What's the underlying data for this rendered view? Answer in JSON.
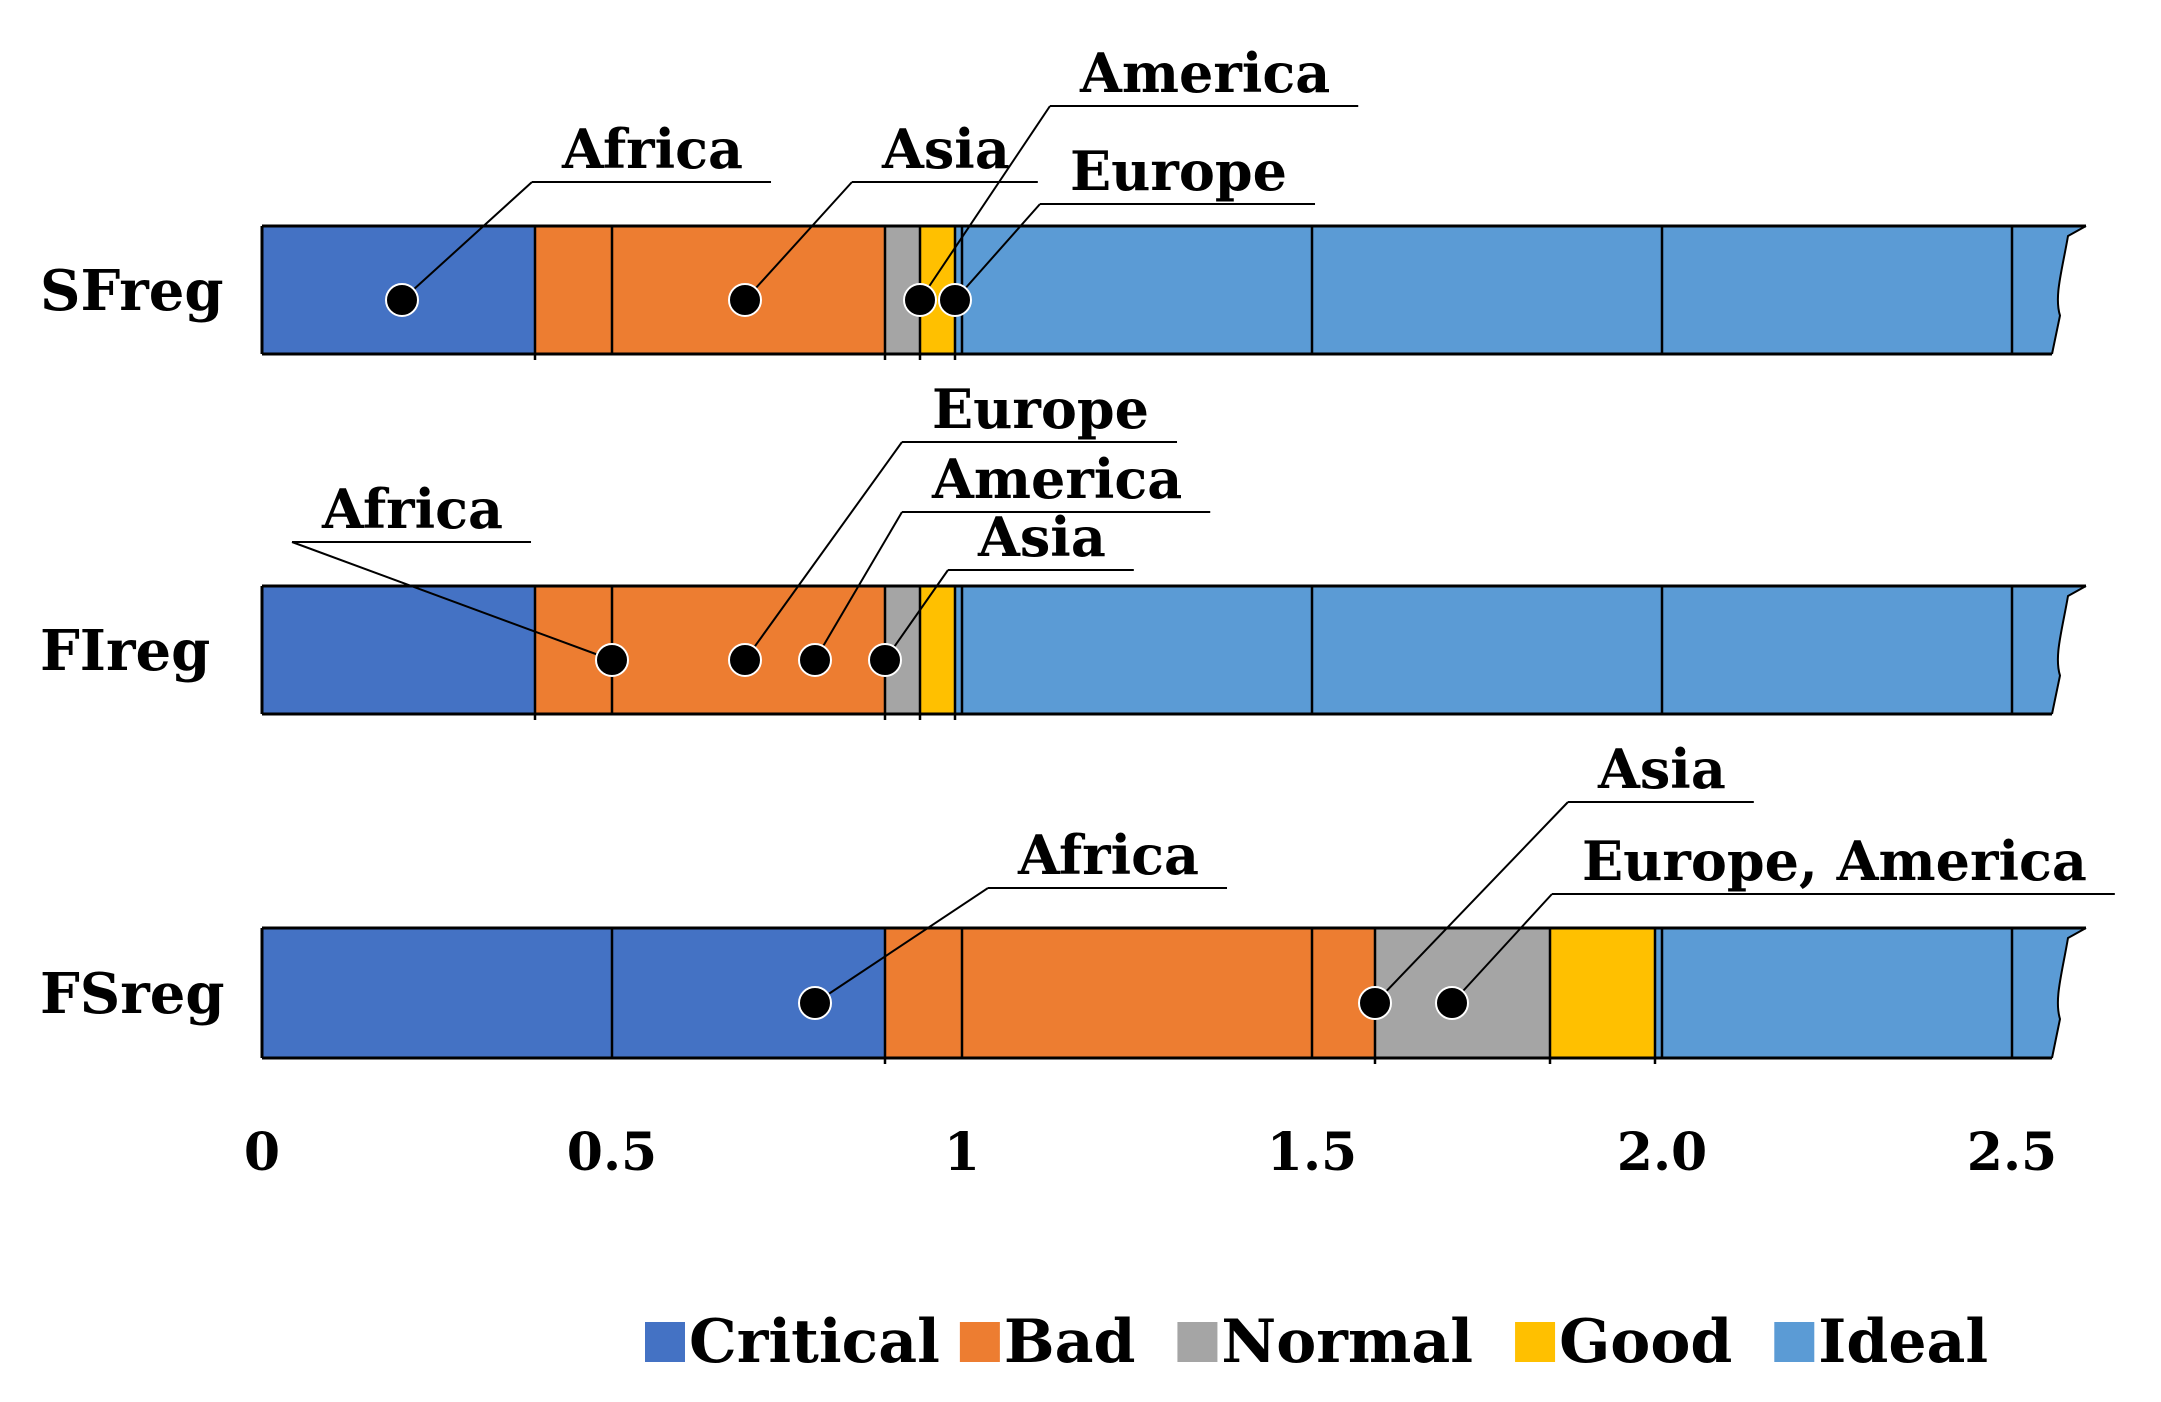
{
  "chart_data": {
    "type": "bar",
    "orientation": "horizontal",
    "xlim": [
      0,
      2.6
    ],
    "x_ticks": [
      "0",
      "0.5",
      "1",
      "1.5",
      "2.0",
      "2.5"
    ],
    "x_tick_values": [
      0,
      0.5,
      1,
      1.5,
      2.0,
      2.5
    ],
    "legend": [
      {
        "name": "Critical",
        "color": "#4472C4"
      },
      {
        "name": "Bad",
        "color": "#ED7D31"
      },
      {
        "name": "Normal",
        "color": "#A5A5A5"
      },
      {
        "name": "Good",
        "color": "#FFC000"
      },
      {
        "name": "Ideal",
        "color": "#5B9BD5"
      }
    ],
    "rows": [
      {
        "label": "SFreg",
        "segments": [
          {
            "class": "Critical",
            "from": 0,
            "to": 0.39
          },
          {
            "class": "Bad",
            "from": 0.39,
            "to": 0.89
          },
          {
            "class": "Normal",
            "from": 0.89,
            "to": 0.94
          },
          {
            "class": "Good",
            "from": 0.94,
            "to": 0.99
          },
          {
            "class": "Ideal",
            "from": 0.99,
            "to": 2.6
          }
        ],
        "points": [
          {
            "name": "Africa",
            "value": 0.2
          },
          {
            "name": "Asia",
            "value": 0.69
          },
          {
            "name": "America",
            "value": 0.94
          },
          {
            "name": "Europe",
            "value": 0.99
          }
        ]
      },
      {
        "label": "FIreg",
        "segments": [
          {
            "class": "Critical",
            "from": 0,
            "to": 0.39
          },
          {
            "class": "Bad",
            "from": 0.39,
            "to": 0.89
          },
          {
            "class": "Normal",
            "from": 0.89,
            "to": 0.94
          },
          {
            "class": "Good",
            "from": 0.94,
            "to": 0.99
          },
          {
            "class": "Ideal",
            "from": 0.99,
            "to": 2.6
          }
        ],
        "points": [
          {
            "name": "Africa",
            "value": 0.5
          },
          {
            "name": "Europe",
            "value": 0.69
          },
          {
            "name": "America",
            "value": 0.79
          },
          {
            "name": "Asia",
            "value": 0.89
          }
        ]
      },
      {
        "label": "FSreg",
        "segments": [
          {
            "class": "Critical",
            "from": 0,
            "to": 0.89
          },
          {
            "class": "Bad",
            "from": 0.89,
            "to": 1.59
          },
          {
            "class": "Normal",
            "from": 1.59,
            "to": 1.84
          },
          {
            "class": "Good",
            "from": 1.84,
            "to": 1.99
          },
          {
            "class": "Ideal",
            "from": 1.99,
            "to": 2.6
          }
        ],
        "points": [
          {
            "name": "Africa",
            "value": 0.79
          },
          {
            "name": "Asia",
            "value": 1.59
          },
          {
            "name": "Europe, America",
            "value": 1.7
          }
        ]
      }
    ]
  }
}
